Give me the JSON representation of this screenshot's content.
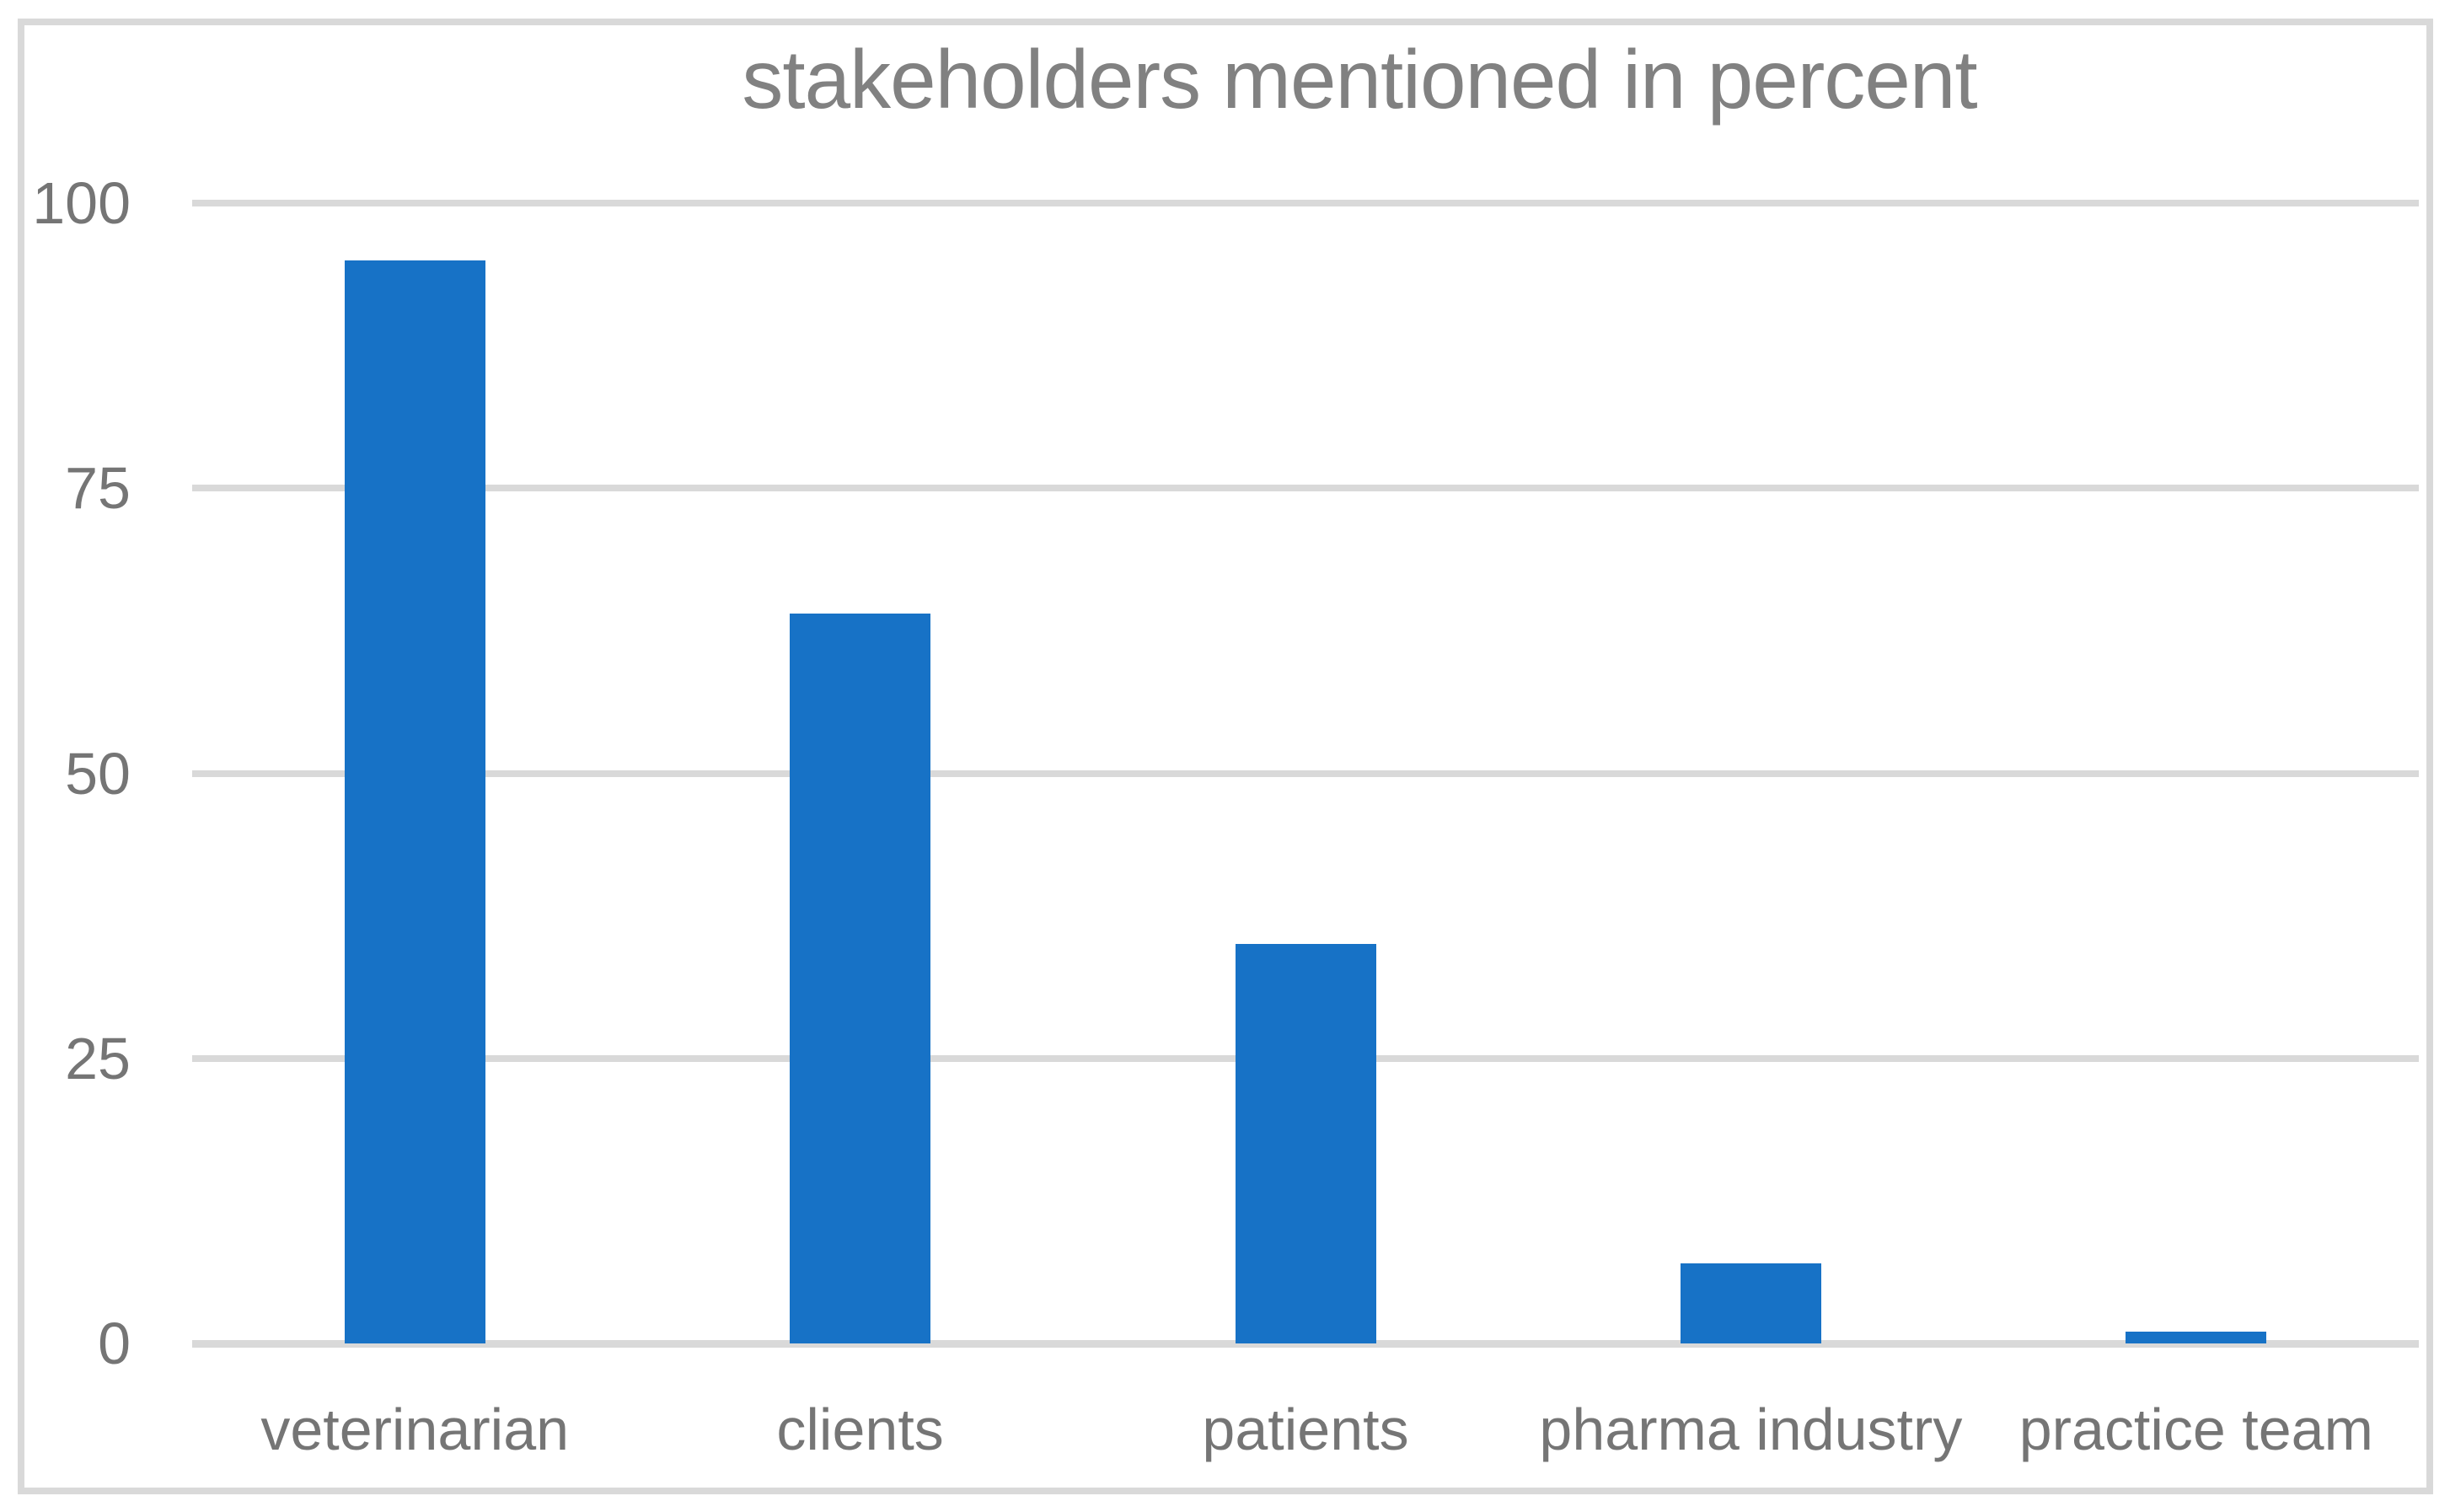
{
  "chart_data": {
    "type": "bar",
    "title": "stakeholders mentioned in percent",
    "categories": [
      "veterinarian",
      "clients",
      "patients",
      "pharma industry",
      "practice team"
    ],
    "values": [
      95,
      64,
      35,
      7,
      1
    ],
    "xlabel": "",
    "ylabel": "",
    "ylim": [
      0,
      100
    ],
    "yticks": [
      100,
      75,
      50,
      25,
      0
    ],
    "grid": "horizontal",
    "legend": "none",
    "colors": {
      "bar": "#1772C6",
      "gridline": "#D9D9D9",
      "axis_line": "#D9D9D9",
      "border": "#D9D9D9",
      "tick_text": "#757575",
      "title_text": "#818181",
      "background": "#FFFFFF"
    }
  }
}
